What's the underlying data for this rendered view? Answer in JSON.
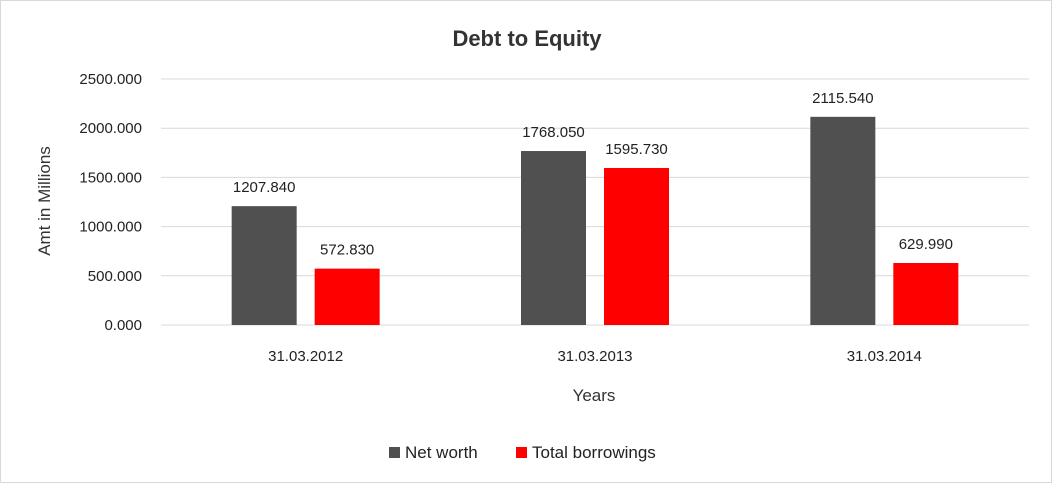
{
  "chart_data": {
    "type": "bar",
    "title": "Debt to Equity",
    "xlabel": "Years",
    "ylabel": "Amt in Millions",
    "categories": [
      "31.03.2012",
      "31.03.2013",
      "31.03.2014"
    ],
    "series": [
      {
        "name": "Net worth",
        "values": [
          1207.84,
          1768.05,
          2115.54
        ],
        "color": "#505050"
      },
      {
        "name": "Total borrowings",
        "values": [
          572.83,
          1595.73,
          629.99
        ],
        "color": "#ff0000"
      }
    ],
    "ylim": [
      0,
      2500
    ],
    "yticks": [
      "0.000",
      "500.000",
      "1000.000",
      "1500.000",
      "2000.000",
      "2500.000"
    ],
    "data_labels": [
      [
        "1207.840",
        "1768.050",
        "2115.540"
      ],
      [
        "572.830",
        "1595.730",
        "629.990"
      ]
    ],
    "grid": true,
    "legend_position": "bottom"
  }
}
